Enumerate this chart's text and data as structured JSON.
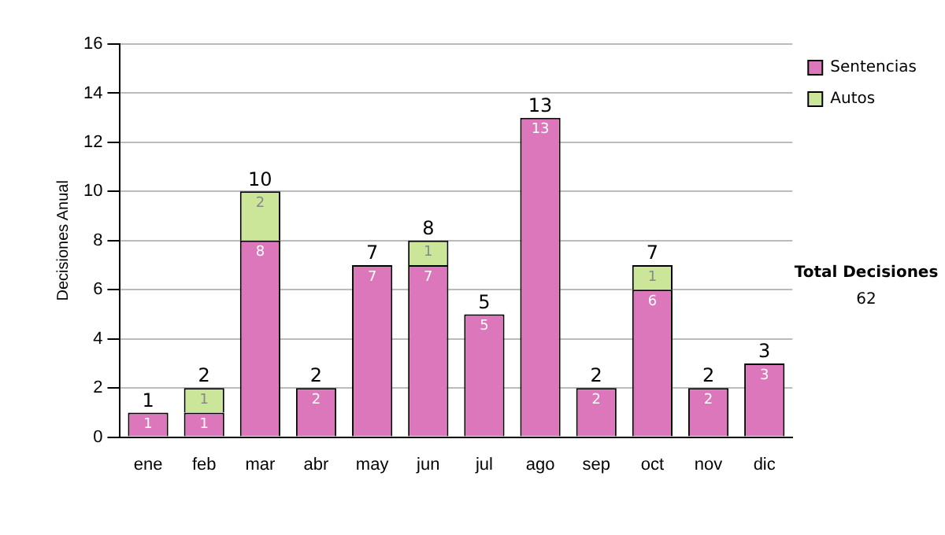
{
  "chart_data": {
    "type": "bar",
    "stacked": true,
    "ylabel": "Decisiones Anual",
    "categories": [
      "ene",
      "feb",
      "mar",
      "abr",
      "may",
      "jun",
      "jul",
      "ago",
      "sep",
      "oct",
      "nov",
      "dic"
    ],
    "series": [
      {
        "name": "Sentencias",
        "color": "#dd77bb",
        "values": [
          1,
          1,
          8,
          2,
          7,
          7,
          5,
          13,
          2,
          6,
          2,
          3
        ]
      },
      {
        "name": "Autos",
        "color": "#cce699",
        "values": [
          null,
          1,
          2,
          null,
          null,
          1,
          null,
          null,
          null,
          1,
          null,
          null
        ]
      }
    ],
    "totals": [
      "1",
      "2",
      "10",
      "2",
      "7",
      "8",
      "5",
      "13",
      "2",
      "7",
      "2",
      "3"
    ],
    "data_labels": true,
    "ylim": [
      0,
      16
    ],
    "yticks": [
      0,
      2,
      4,
      6,
      8,
      10,
      12,
      14,
      16
    ],
    "grid": "y",
    "legend": "right",
    "annotations": [
      "Total Decisiones",
      "62"
    ]
  }
}
